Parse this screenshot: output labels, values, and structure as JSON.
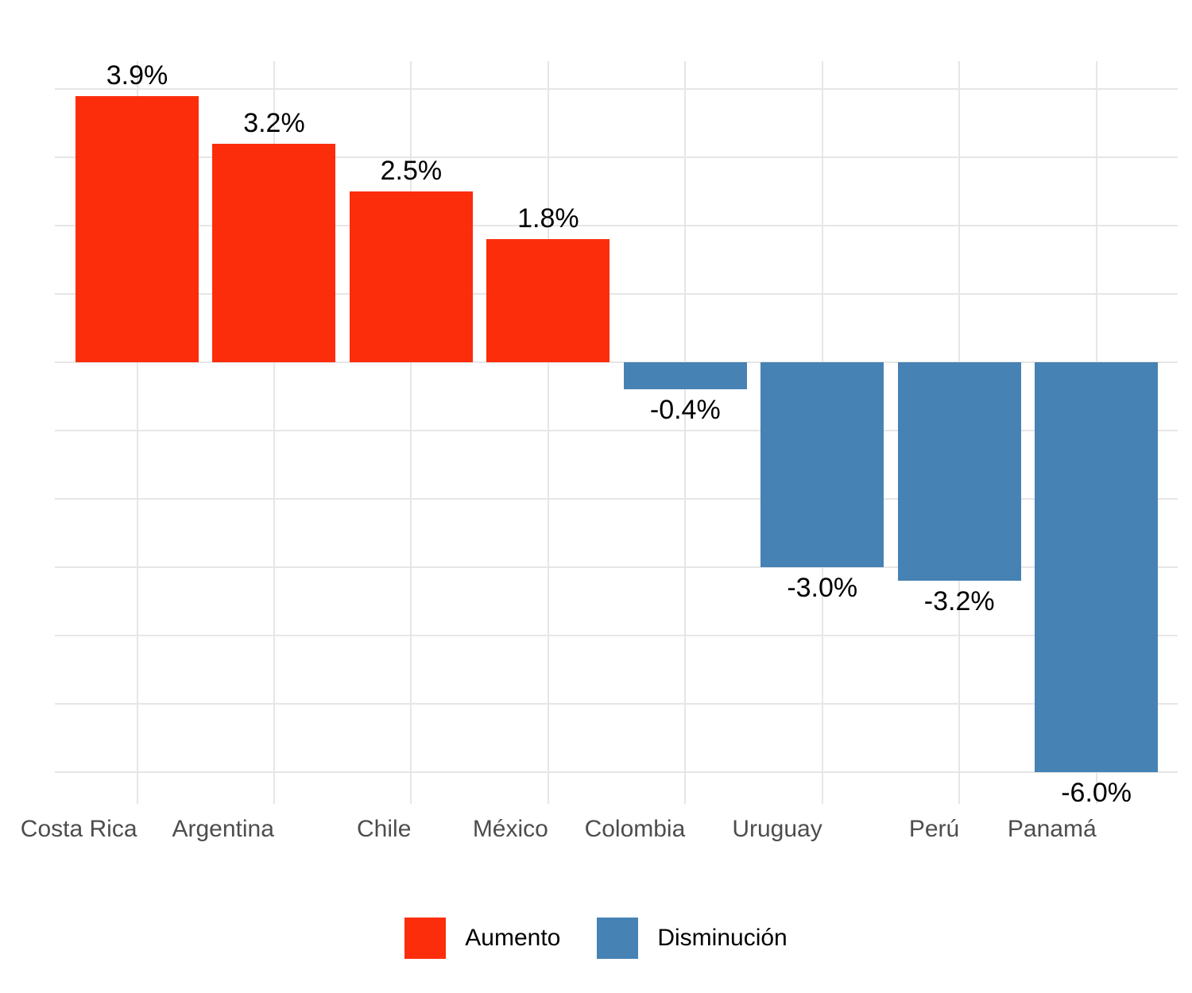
{
  "chart_data": {
    "type": "bar",
    "categories": [
      "Costa Rica",
      "Argentina",
      "Chile",
      "México",
      "Colombia",
      "Uruguay",
      "Perú",
      "Panamá"
    ],
    "values": [
      3.9,
      3.2,
      2.5,
      1.8,
      -0.4,
      -3.0,
      -3.2,
      -6.0
    ],
    "bar_labels": [
      "3.9%",
      "3.2%",
      "2.5%",
      "1.8%",
      "-0.4%",
      "-3.0%",
      "-3.2%",
      "-6.0%"
    ],
    "series_colors": {
      "positive": "#FC2D0A",
      "negative": "#4682B4"
    },
    "legend": [
      {
        "label": "Aumento",
        "color": "#FC2D0A"
      },
      {
        "label": "Disminución",
        "color": "#4682B4"
      }
    ],
    "legend_position": "bottom",
    "grid": true,
    "grid_color": "#e6e6e6",
    "axis_text_color": "#4d4d4d",
    "label_text_color": "#000000",
    "ylim": [
      -6.5,
      4.4
    ],
    "grid_step": 1,
    "y_axis_labels_visible": false,
    "x_label_alignment": "right"
  }
}
